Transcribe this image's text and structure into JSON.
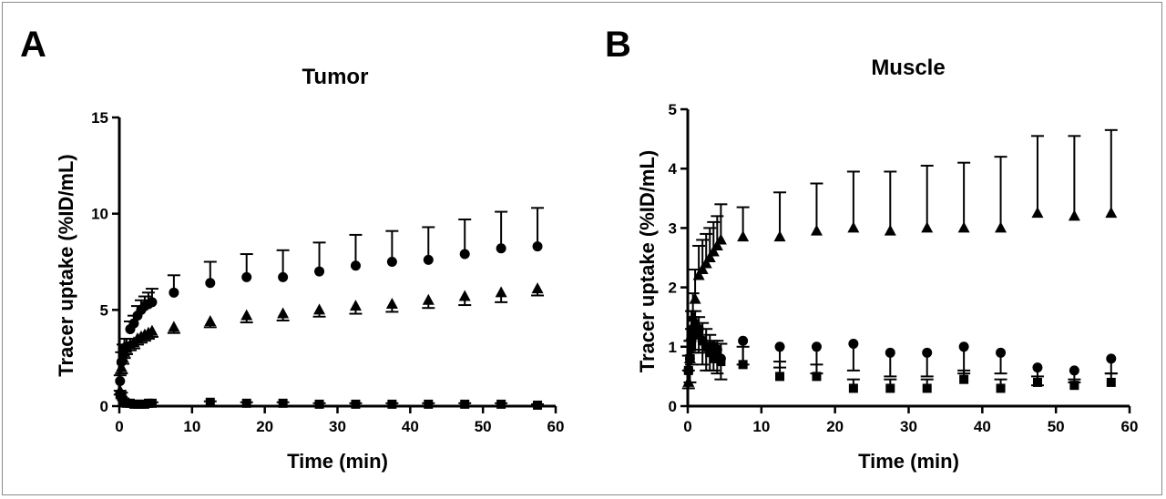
{
  "chart_data": [
    {
      "panel": "A",
      "type": "scatter",
      "title": "Tumor",
      "xlabel": "Time (min)",
      "ylabel": "Tracer uptake (%ID/mL)",
      "xlim": [
        0,
        60
      ],
      "ylim": [
        0,
        15
      ],
      "xticks": [
        0,
        10,
        20,
        30,
        40,
        50,
        60
      ],
      "yticks": [
        0,
        5,
        10,
        15
      ],
      "grid": false,
      "series": [
        {
          "marker": "circle",
          "x": [
            0.1,
            0.3,
            0.5,
            0.7,
            1,
            1.5,
            2,
            2.5,
            3,
            3.5,
            4,
            4.5,
            7.5,
            12.5,
            17.5,
            22.5,
            27.5,
            32.5,
            37.5,
            42.5,
            47.5,
            52.5,
            57.5
          ],
          "y": [
            1.3,
            2.3,
            2.7,
            3.0,
            3.1,
            4.0,
            4.3,
            4.7,
            5.0,
            5.2,
            5.3,
            5.4,
            5.9,
            6.4,
            6.7,
            6.7,
            7.0,
            7.3,
            7.5,
            7.6,
            7.9,
            8.2,
            8.3
          ],
          "err": [
            0.3,
            0.5,
            0.5,
            0.5,
            0.4,
            0.4,
            0.4,
            0.5,
            0.5,
            0.5,
            0.6,
            0.7,
            0.9,
            1.1,
            1.2,
            1.4,
            1.5,
            1.6,
            1.6,
            1.7,
            1.8,
            1.9,
            2.0
          ],
          "err_dir": "up"
        },
        {
          "marker": "triangle",
          "x": [
            0.1,
            0.3,
            0.5,
            0.7,
            1,
            1.5,
            2,
            2.5,
            3,
            3.5,
            4,
            4.5,
            7.5,
            12.5,
            17.5,
            22.5,
            27.5,
            32.5,
            37.5,
            42.5,
            47.5,
            52.5,
            57.5
          ],
          "y": [
            0.8,
            2.0,
            2.5,
            2.8,
            3.0,
            3.2,
            3.3,
            3.5,
            3.6,
            3.7,
            3.8,
            3.9,
            4.1,
            4.4,
            4.7,
            4.8,
            5.0,
            5.2,
            5.3,
            5.5,
            5.7,
            5.9,
            6.1
          ],
          "err": [
            0.2,
            0.3,
            0.3,
            0.3,
            0.3,
            0.3,
            0.3,
            0.3,
            0.3,
            0.3,
            0.3,
            0.3,
            0.3,
            0.3,
            0.35,
            0.35,
            0.35,
            0.4,
            0.4,
            0.4,
            0.45,
            0.5,
            0.35
          ],
          "err_dir": "down"
        },
        {
          "marker": "square",
          "x": [
            0.1,
            0.3,
            0.5,
            0.7,
            1,
            1.5,
            2,
            2.5,
            3,
            3.5,
            4,
            4.5,
            12.5,
            17.5,
            22.5,
            27.5,
            32.5,
            37.5,
            42.5,
            47.5,
            52.5,
            57.5
          ],
          "y": [
            0.6,
            0.5,
            0.3,
            0.2,
            0.15,
            0.15,
            0.1,
            0.1,
            0.1,
            0.1,
            0.15,
            0.15,
            0.2,
            0.15,
            0.15,
            0.1,
            0.1,
            0.1,
            0.1,
            0.1,
            0.1,
            0.05
          ],
          "err": [
            0.2,
            0.2,
            0.1,
            0.1,
            0.05,
            0.05,
            0.05,
            0.05,
            0.05,
            0.05,
            0.05,
            0.05,
            0.05,
            0.05,
            0.05,
            0.05,
            0.05,
            0.05,
            0.05,
            0.05,
            0.05,
            0.05
          ],
          "err_dir": "up"
        }
      ]
    },
    {
      "panel": "B",
      "type": "scatter",
      "title": "Muscle",
      "xlabel": "Time (min)",
      "ylabel": "Tracer uptake (%ID/mL)",
      "xlim": [
        0,
        60
      ],
      "ylim": [
        0,
        5
      ],
      "xticks": [
        0,
        10,
        20,
        30,
        40,
        50,
        60
      ],
      "yticks": [
        0,
        1,
        2,
        3,
        4,
        5
      ],
      "grid": false,
      "series": [
        {
          "marker": "triangle",
          "x": [
            0.1,
            0.3,
            0.5,
            0.7,
            1,
            1.5,
            2,
            2.5,
            3,
            3.5,
            4,
            4.5,
            7.5,
            12.5,
            17.5,
            22.5,
            27.5,
            32.5,
            37.5,
            42.5,
            47.5,
            52.5,
            57.5
          ],
          "y": [
            0.4,
            0.8,
            1.2,
            1.5,
            1.8,
            2.2,
            2.3,
            2.4,
            2.5,
            2.6,
            2.7,
            2.8,
            2.85,
            2.85,
            2.95,
            3.0,
            2.95,
            3.0,
            3.0,
            3.0,
            3.25,
            3.2,
            3.25
          ],
          "err": [
            0.2,
            0.3,
            0.4,
            0.4,
            0.5,
            0.5,
            0.5,
            0.5,
            0.5,
            0.5,
            0.5,
            0.6,
            0.5,
            0.75,
            0.8,
            0.95,
            1.0,
            1.05,
            1.1,
            1.2,
            1.3,
            1.35,
            1.4
          ],
          "err_dir": "up"
        },
        {
          "marker": "circle",
          "x": [
            0.1,
            0.3,
            0.5,
            0.7,
            1,
            1.5,
            2,
            2.5,
            3,
            3.5,
            4,
            4.5,
            7.5,
            12.5,
            17.5,
            22.5,
            27.5,
            32.5,
            37.5,
            42.5,
            47.5,
            52.5,
            57.5
          ],
          "y": [
            0.6,
            0.8,
            1.1,
            1.3,
            1.35,
            1.3,
            1.1,
            1.0,
            1.0,
            1.0,
            0.95,
            0.8,
            1.1,
            1.0,
            1.0,
            1.05,
            0.9,
            0.9,
            1.0,
            0.9,
            0.65,
            0.6,
            0.8
          ],
          "err": [
            0.3,
            0.4,
            0.4,
            0.4,
            0.4,
            0.4,
            0.4,
            0.4,
            0.4,
            0.4,
            0.4,
            0.35,
            0.4,
            0.35,
            0.45,
            0.45,
            0.4,
            0.4,
            0.45,
            0.35,
            0.3,
            0.2,
            0.25
          ],
          "err_dir": "down"
        },
        {
          "marker": "square",
          "x": [
            0.1,
            0.3,
            0.5,
            0.7,
            1,
            1.5,
            2,
            2.5,
            3,
            3.5,
            4,
            4.5,
            7.5,
            12.5,
            17.5,
            22.5,
            27.5,
            32.5,
            37.5,
            42.5,
            47.5,
            52.5,
            57.5
          ],
          "y": [
            0.6,
            0.8,
            1.0,
            1.2,
            1.3,
            1.2,
            1.1,
            1.0,
            0.9,
            0.8,
            0.8,
            0.75,
            0.7,
            0.5,
            0.5,
            0.3,
            0.3,
            0.3,
            0.45,
            0.3,
            0.4,
            0.35,
            0.4
          ],
          "err": [
            0.25,
            0.3,
            0.3,
            0.3,
            0.3,
            0.3,
            0.3,
            0.3,
            0.3,
            0.3,
            0.3,
            0.3,
            0.3,
            0.25,
            0.2,
            0.15,
            0.15,
            0.15,
            0.15,
            0.15,
            0.1,
            0.1,
            0.15
          ],
          "err_dir": "up"
        }
      ]
    }
  ]
}
